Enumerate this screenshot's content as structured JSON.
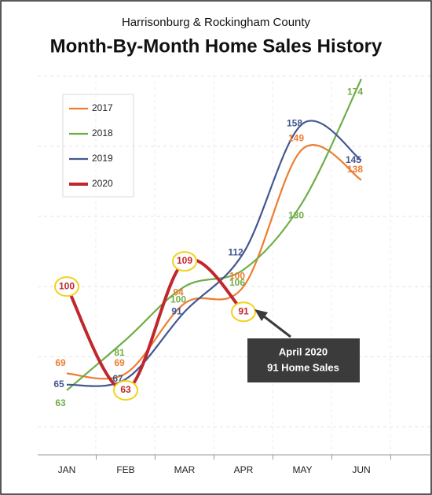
{
  "chart_data": {
    "type": "line",
    "subtitle": "Harrisonburg & Rockingham County",
    "title": "Month-By-Month Home Sales History",
    "categories": [
      "JAN",
      "FEB",
      "MAR",
      "APR",
      "MAY",
      "JUN"
    ],
    "series": [
      {
        "name": "2017",
        "color": "#ed7d31",
        "values": [
          69,
          69,
          94,
          100,
          149,
          138
        ]
      },
      {
        "name": "2018",
        "color": "#70ad47",
        "values": [
          63,
          81,
          100,
          106,
          130,
          174
        ]
      },
      {
        "name": "2019",
        "color": "#44578f",
        "values": [
          65,
          67,
          91,
          112,
          158,
          145
        ]
      },
      {
        "name": "2020",
        "color": "#c0272d",
        "values": [
          100,
          63,
          109,
          91,
          null,
          null
        ]
      }
    ],
    "ylim": [
      40,
      180
    ],
    "yticks": [
      50,
      75,
      100,
      125,
      150,
      175
    ],
    "grid": true,
    "legend": "top-left",
    "annotation": [
      "April 2020",
      "91 Home Sales"
    ]
  }
}
